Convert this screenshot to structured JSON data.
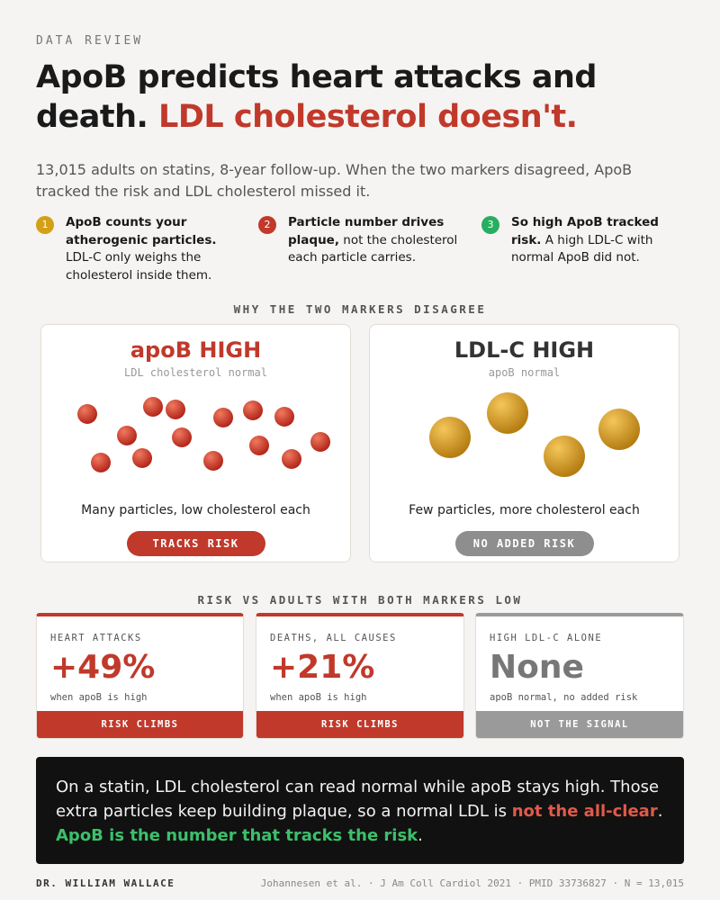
{
  "header": {
    "kicker": "DATA REVIEW",
    "title_part1": "ApoB predicts heart attacks and death.",
    "title_part2": "LDL cholesterol doesn't.",
    "subtitle": "13,015 adults on statins, 8-year follow-up. When the two markers disagreed, ApoB tracked the risk and LDL cholesterol missed it."
  },
  "points": [
    {
      "number": "1",
      "bold": "ApoB counts your atherogenic particles.",
      "text": "LDL-C only weighs the cholesterol inside them."
    },
    {
      "number": "2",
      "bold": "Particle number drives plaque,",
      "text": "not the cholesterol each particle carries."
    },
    {
      "number": "3",
      "bold": "So high ApoB tracked risk.",
      "text": "A high LDL-C with normal ApoB did not."
    }
  ],
  "comparison": {
    "heading": "WHY THE TWO MARKERS DISAGREE",
    "panels": [
      {
        "title": "apoB HIGH",
        "subtitle": "LDL cholesterol normal",
        "caption": "Many particles, low cholesterol each",
        "badge": "TRACKS RISK"
      },
      {
        "title": "LDL-C HIGH",
        "subtitle": "apoB normal",
        "caption": "Few particles, more cholesterol each",
        "badge": "NO ADDED RISK"
      }
    ]
  },
  "risk": {
    "heading": "RISK VS ADULTS WITH BOTH MARKERS LOW",
    "cards": [
      {
        "label": "HEART ATTACKS",
        "value": "+49%",
        "note": "when apoB is high",
        "footer": "RISK CLIMBS"
      },
      {
        "label": "DEATHS, ALL CAUSES",
        "value": "+21%",
        "note": "when apoB is high",
        "footer": "RISK CLIMBS"
      },
      {
        "label": "HIGH LDL-C ALONE",
        "value": "None",
        "note": "apoB normal, no added risk",
        "footer": "NOT THE SIGNAL"
      }
    ]
  },
  "callout": {
    "text1": "On a statin, LDL cholesterol can read normal while apoB stays high. Those extra particles keep building plaque, so a normal LDL is",
    "highlight1": "not the all-clear",
    "text2": ".",
    "highlight2": "ApoB is the number that tracks the risk",
    "text3": "."
  },
  "footer": {
    "author": "DR. WILLIAM WALLACE",
    "citation": "Johannesen et al. · J Am Coll Cardiol 2021 · PMID 33736827 · N = 13,015"
  }
}
